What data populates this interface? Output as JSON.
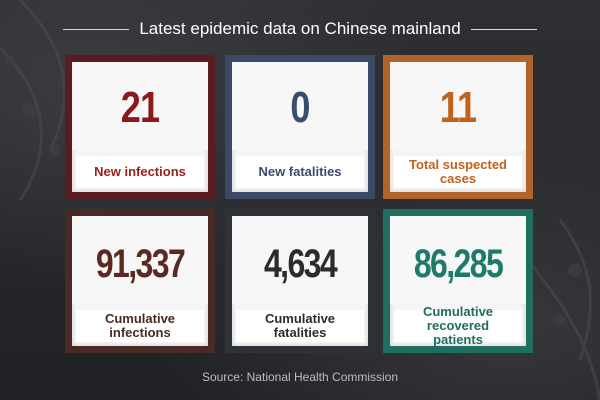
{
  "header": {
    "title": "Latest epidemic data on Chinese mainland"
  },
  "cards": [
    {
      "value": "21",
      "label": "New infections",
      "accent": "#8b1a1f"
    },
    {
      "value": "0",
      "label": "New fatalities",
      "accent": "#3a4d6e"
    },
    {
      "value": "11",
      "label": "Total suspected cases",
      "accent": "#c0621c"
    },
    {
      "value": "91,337",
      "label": "Cumulative infections",
      "accent": "#5a2a22"
    },
    {
      "value": "4,634",
      "label": "Cumulative fatalities",
      "accent": "#2c2c2c"
    },
    {
      "value": "86,285",
      "label": "Cumulative recovered patients",
      "accent": "#1e7a6a"
    }
  ],
  "source": "Source: National Health Commission"
}
